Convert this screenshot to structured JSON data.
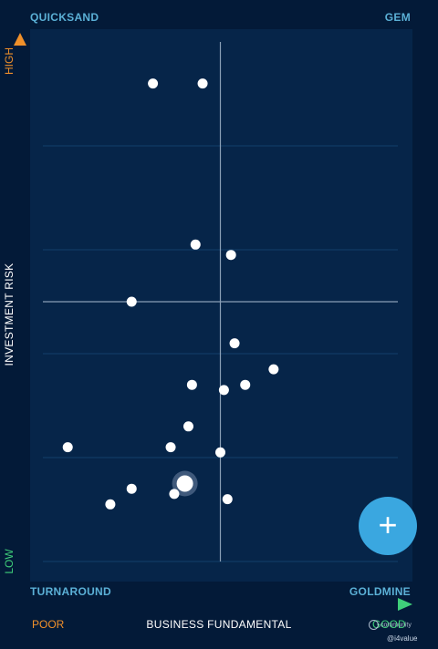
{
  "quadrants": {
    "top_left": "QUICKSAND",
    "top_right": "GEM",
    "bottom_left": "TURNAROUND",
    "bottom_right": "GOLDMINE"
  },
  "y_axis": {
    "title": "INVESTMENT RISK",
    "high_label": "HIGH",
    "low_label": "LOW"
  },
  "x_axis": {
    "title": "BUSINESS FUNDAMENTAL",
    "low_label": "POOR",
    "high_label": "GOOD"
  },
  "fab": {
    "icon": "plus-icon",
    "glyph": "+"
  },
  "watermark": {
    "text": "community",
    "handle": "@i4value"
  },
  "colors": {
    "background": "#031a38",
    "plot": "#062549",
    "high": "#f0902a",
    "low": "#3fcf7a",
    "accent": "#3aa7e0",
    "quadrant_label": "#5bb0d6"
  },
  "chart_data": {
    "type": "scatter",
    "xlim": [
      0,
      1
    ],
    "ylim": [
      0,
      1
    ],
    "grid": true,
    "quadrant_divider": {
      "x": 0.5,
      "y": 0.5
    },
    "points": [
      {
        "x": 0.31,
        "y": 0.92
      },
      {
        "x": 0.45,
        "y": 0.92
      },
      {
        "x": 0.43,
        "y": 0.61
      },
      {
        "x": 0.53,
        "y": 0.59
      },
      {
        "x": 0.25,
        "y": 0.5
      },
      {
        "x": 0.54,
        "y": 0.42
      },
      {
        "x": 0.65,
        "y": 0.37
      },
      {
        "x": 0.42,
        "y": 0.34
      },
      {
        "x": 0.51,
        "y": 0.33
      },
      {
        "x": 0.57,
        "y": 0.34
      },
      {
        "x": 0.41,
        "y": 0.26
      },
      {
        "x": 0.07,
        "y": 0.22
      },
      {
        "x": 0.36,
        "y": 0.22
      },
      {
        "x": 0.5,
        "y": 0.21
      },
      {
        "x": 0.4,
        "y": 0.15,
        "highlighted": true
      },
      {
        "x": 0.25,
        "y": 0.14
      },
      {
        "x": 0.37,
        "y": 0.13
      },
      {
        "x": 0.52,
        "y": 0.12
      },
      {
        "x": 0.19,
        "y": 0.11
      }
    ]
  }
}
